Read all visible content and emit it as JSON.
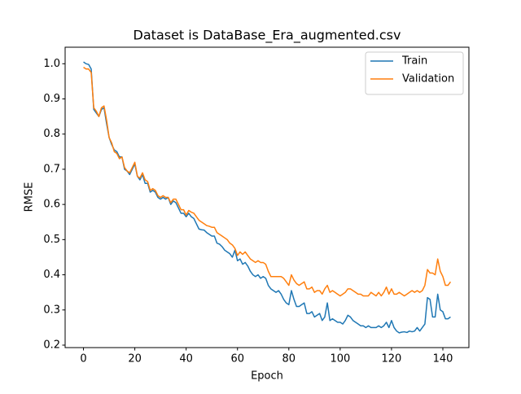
{
  "chart_data": {
    "type": "line",
    "title": "Dataset is DataBase_Era_augmented.csv",
    "xlabel": "Epoch",
    "ylabel": "RMSE",
    "x": [
      0,
      1,
      2,
      3,
      4,
      5,
      6,
      7,
      8,
      9,
      10,
      11,
      12,
      13,
      14,
      15,
      16,
      17,
      18,
      19,
      20,
      21,
      22,
      23,
      24,
      25,
      26,
      27,
      28,
      29,
      30,
      31,
      32,
      33,
      34,
      35,
      36,
      37,
      38,
      39,
      40,
      41,
      42,
      43,
      44,
      45,
      46,
      47,
      48,
      49,
      50,
      51,
      52,
      53,
      54,
      55,
      56,
      57,
      58,
      59,
      60,
      61,
      62,
      63,
      64,
      65,
      66,
      67,
      68,
      69,
      70,
      71,
      72,
      73,
      74,
      75,
      76,
      77,
      78,
      79,
      80,
      81,
      82,
      83,
      84,
      85,
      86,
      87,
      88,
      89,
      90,
      91,
      92,
      93,
      94,
      95,
      96,
      97,
      98,
      99,
      100,
      101,
      102,
      103,
      104,
      105,
      106,
      107,
      108,
      109,
      110,
      111,
      112,
      113,
      114,
      115,
      116,
      117,
      118,
      119,
      120,
      121,
      122,
      123,
      124,
      125,
      126,
      127,
      128,
      129,
      130,
      131,
      132,
      133,
      134,
      135,
      136,
      137,
      138,
      139,
      140,
      141,
      142,
      143
    ],
    "series": [
      {
        "name": "Train",
        "color": "#1f77b4",
        "values": [
          1.005,
          1.0,
          0.998,
          0.985,
          0.87,
          0.86,
          0.85,
          0.87,
          0.875,
          0.83,
          0.79,
          0.77,
          0.755,
          0.75,
          0.735,
          0.735,
          0.7,
          0.695,
          0.685,
          0.7,
          0.715,
          0.68,
          0.67,
          0.685,
          0.66,
          0.66,
          0.635,
          0.64,
          0.635,
          0.62,
          0.615,
          0.62,
          0.615,
          0.62,
          0.6,
          0.61,
          0.605,
          0.59,
          0.575,
          0.575,
          0.565,
          0.575,
          0.565,
          0.56,
          0.545,
          0.53,
          0.528,
          0.527,
          0.52,
          0.515,
          0.51,
          0.51,
          0.49,
          0.487,
          0.48,
          0.47,
          0.465,
          0.46,
          0.45,
          0.47,
          0.44,
          0.445,
          0.43,
          0.435,
          0.425,
          0.41,
          0.4,
          0.395,
          0.4,
          0.39,
          0.395,
          0.39,
          0.37,
          0.36,
          0.355,
          0.35,
          0.355,
          0.345,
          0.33,
          0.32,
          0.315,
          0.355,
          0.33,
          0.31,
          0.31,
          0.315,
          0.32,
          0.29,
          0.29,
          0.295,
          0.28,
          0.285,
          0.29,
          0.27,
          0.28,
          0.32,
          0.27,
          0.275,
          0.27,
          0.265,
          0.265,
          0.26,
          0.27,
          0.285,
          0.28,
          0.27,
          0.265,
          0.26,
          0.255,
          0.255,
          0.25,
          0.255,
          0.25,
          0.25,
          0.25,
          0.255,
          0.25,
          0.255,
          0.265,
          0.25,
          0.27,
          0.25,
          0.24,
          0.235,
          0.237,
          0.238,
          0.236,
          0.24,
          0.238,
          0.24,
          0.25,
          0.24,
          0.25,
          0.26,
          0.335,
          0.33,
          0.28,
          0.28,
          0.345,
          0.3,
          0.295,
          0.275,
          0.275,
          0.28
        ]
      },
      {
        "name": "Validation",
        "color": "#ff7f0e",
        "values": [
          0.99,
          0.985,
          0.985,
          0.975,
          0.875,
          0.865,
          0.85,
          0.875,
          0.88,
          0.84,
          0.79,
          0.775,
          0.75,
          0.745,
          0.73,
          0.735,
          0.705,
          0.695,
          0.69,
          0.705,
          0.72,
          0.68,
          0.675,
          0.69,
          0.67,
          0.665,
          0.64,
          0.645,
          0.64,
          0.625,
          0.62,
          0.625,
          0.62,
          0.62,
          0.605,
          0.615,
          0.615,
          0.6,
          0.585,
          0.585,
          0.57,
          0.583,
          0.578,
          0.575,
          0.565,
          0.555,
          0.55,
          0.545,
          0.54,
          0.538,
          0.535,
          0.535,
          0.52,
          0.515,
          0.51,
          0.505,
          0.5,
          0.49,
          0.485,
          0.475,
          0.455,
          0.465,
          0.458,
          0.465,
          0.455,
          0.445,
          0.44,
          0.435,
          0.44,
          0.435,
          0.435,
          0.43,
          0.41,
          0.395,
          0.395,
          0.395,
          0.395,
          0.395,
          0.39,
          0.38,
          0.37,
          0.4,
          0.385,
          0.375,
          0.37,
          0.375,
          0.38,
          0.36,
          0.36,
          0.365,
          0.35,
          0.355,
          0.355,
          0.345,
          0.36,
          0.37,
          0.35,
          0.355,
          0.35,
          0.345,
          0.34,
          0.345,
          0.35,
          0.36,
          0.36,
          0.355,
          0.35,
          0.345,
          0.345,
          0.34,
          0.34,
          0.34,
          0.35,
          0.345,
          0.34,
          0.35,
          0.34,
          0.35,
          0.365,
          0.345,
          0.36,
          0.345,
          0.345,
          0.35,
          0.345,
          0.34,
          0.345,
          0.35,
          0.355,
          0.35,
          0.355,
          0.35,
          0.355,
          0.37,
          0.415,
          0.405,
          0.405,
          0.4,
          0.445,
          0.41,
          0.395,
          0.37,
          0.37,
          0.38
        ]
      }
    ],
    "xlim": [
      -7.15,
      150.15
    ],
    "xticks": [
      0,
      20,
      40,
      60,
      80,
      100,
      120,
      140
    ],
    "ylim": [
      0.193,
      1.047
    ],
    "yticks": [
      0.2,
      0.3,
      0.4,
      0.5,
      0.6,
      0.7,
      0.8,
      0.9,
      {
        "value": 1,
        "label": "1.0"
      }
    ],
    "legend": "upper right"
  }
}
